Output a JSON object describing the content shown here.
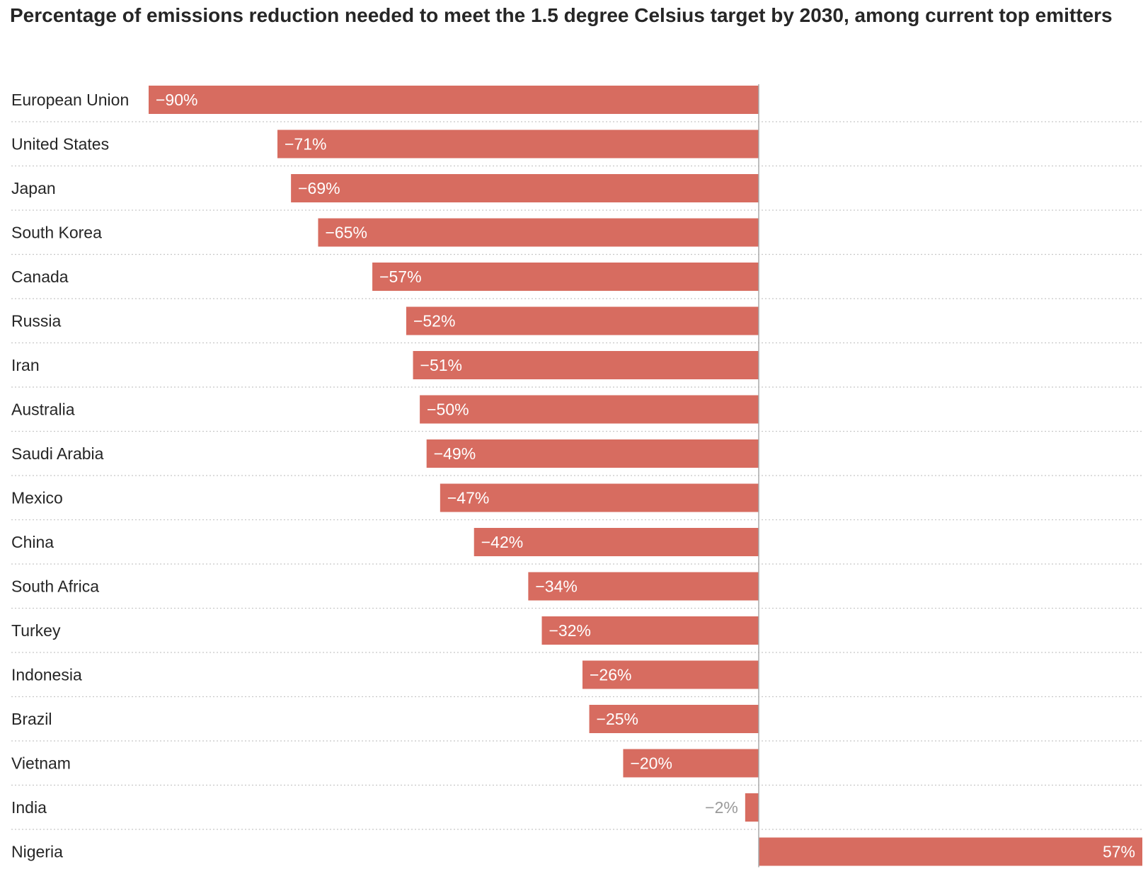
{
  "chart_data": {
    "type": "bar",
    "orientation": "horizontal",
    "title": "Percentage of emissions reduction needed to meet the 1.5 degree Celsius target by 2030, among current top emitters",
    "categories": [
      "European Union",
      "United States",
      "Japan",
      "South Korea",
      "Canada",
      "Russia",
      "Iran",
      "Australia",
      "Saudi Arabia",
      "Mexico",
      "China",
      "South Africa",
      "Turkey",
      "Indonesia",
      "Brazil",
      "Vietnam",
      "India",
      "Nigeria"
    ],
    "values": [
      -90,
      -71,
      -69,
      -65,
      -57,
      -52,
      -51,
      -50,
      -49,
      -47,
      -42,
      -34,
      -32,
      -26,
      -25,
      -20,
      -2,
      57
    ],
    "value_labels": [
      "−90%",
      "−71%",
      "−69%",
      "−65%",
      "−57%",
      "−52%",
      "−51%",
      "−50%",
      "−49%",
      "−47%",
      "−42%",
      "−34%",
      "−32%",
      "−26%",
      "−25%",
      "−20%",
      "−2%",
      "57%"
    ],
    "xlim": [
      -90,
      57
    ],
    "grid": "dotted row separators",
    "bar_color": "#d76c60",
    "inside_label_color": "#ffffff",
    "outside_label_color": "#9a9a9a",
    "axis_color": "#aaaaaa"
  }
}
